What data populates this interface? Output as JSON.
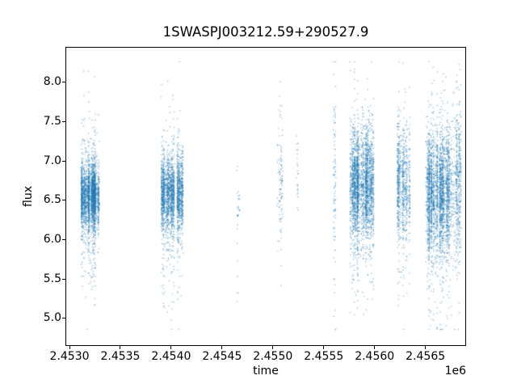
{
  "figure": {
    "background_color": "#ffffff",
    "text_color": "#000000"
  },
  "chart_data": {
    "type": "scatter",
    "title": "1SWASPJ003212.59+290527.9",
    "xlabel": "time",
    "ylabel": "flux",
    "x_offset_label": "1e6",
    "grid": false,
    "legend": null,
    "xlim": [
      2452960,
      2456900
    ],
    "ylim": [
      4.65,
      8.45
    ],
    "x_ticks": [
      2453000,
      2453500,
      2454000,
      2454500,
      2455000,
      2455500,
      2456000,
      2456500
    ],
    "x_tick_labels": [
      "2.4530",
      "2.4535",
      "2.4540",
      "2.4545",
      "2.4550",
      "2.4555",
      "2.4560",
      "2.4565"
    ],
    "y_ticks": [
      5.0,
      5.5,
      6.0,
      6.5,
      7.0,
      7.5,
      8.0
    ],
    "y_tick_labels": [
      "5.0",
      "5.5",
      "6.0",
      "6.5",
      "7.0",
      "7.5",
      "8.0"
    ],
    "marker_color": "#1f77b4",
    "marker_alpha": 0.5,
    "marker_size_px": 1.3,
    "flux_clamp": [
      4.86,
      8.26
    ],
    "clusters": [
      {
        "name": "season-1",
        "t_min": 2453111,
        "t_max": 2453294,
        "n": 2600,
        "flux_mean": 6.55,
        "flux_sigma": 0.2,
        "tail_frac": 0.18,
        "tail_sigma": 0.5,
        "tail_bias": -0.1,
        "night_spacing": 4
      },
      {
        "name": "season-2a",
        "t_min": 2453905,
        "t_max": 2454038,
        "n": 1500,
        "flux_mean": 6.6,
        "flux_sigma": 0.23,
        "tail_frac": 0.18,
        "tail_sigma": 0.55,
        "tail_bias": -0.12,
        "night_spacing": 4
      },
      {
        "name": "season-2b",
        "t_min": 2454059,
        "t_max": 2454117,
        "n": 750,
        "flux_mean": 6.6,
        "flux_sigma": 0.26,
        "tail_frac": 0.18,
        "tail_sigma": 0.55,
        "tail_bias": -0.12,
        "night_spacing": 4
      },
      {
        "name": "sparse-column-1",
        "t_min": 2454644,
        "t_max": 2454676,
        "n": 30,
        "flux_mean": 6.35,
        "flux_sigma": 0.15,
        "tail_frac": 0.35,
        "tail_sigma": 0.5,
        "tail_bias": -0.25,
        "night_spacing": 2
      },
      {
        "name": "sparse-column-2",
        "t_min": 2455041,
        "t_max": 2455097,
        "n": 110,
        "flux_mean": 6.75,
        "flux_sigma": 0.38,
        "tail_frac": 0.25,
        "tail_sigma": 0.75,
        "tail_bias": -0.05,
        "night_spacing": 3
      },
      {
        "name": "sparse-column-3",
        "t_min": 2455232,
        "t_max": 2455248,
        "n": 25,
        "flux_mean": 6.75,
        "flux_sigma": 0.28,
        "tail_frac": 0.15,
        "tail_sigma": 0.35,
        "tail_bias": 0.0,
        "night_spacing": 2
      },
      {
        "name": "sparse-column-4",
        "t_min": 2455597,
        "t_max": 2455621,
        "n": 95,
        "flux_mean": 6.8,
        "flux_sigma": 0.5,
        "tail_frac": 0.35,
        "tail_sigma": 1.0,
        "tail_bias": -0.3,
        "night_spacing": 2
      },
      {
        "name": "season-3-lead",
        "t_min": 2455756,
        "t_max": 2455782,
        "n": 130,
        "flux_mean": 6.7,
        "flux_sigma": 0.4,
        "tail_frac": 0.2,
        "tail_sigma": 0.7,
        "tail_bias": -0.15,
        "night_spacing": 3
      },
      {
        "name": "season-3",
        "t_min": 2455782,
        "t_max": 2455994,
        "n": 2500,
        "flux_mean": 6.7,
        "flux_sigma": 0.33,
        "tail_frac": 0.18,
        "tail_sigma": 0.65,
        "tail_bias": -0.15,
        "night_spacing": 4
      },
      {
        "name": "season-4",
        "t_min": 2456225,
        "t_max": 2456352,
        "n": 850,
        "flux_mean": 6.7,
        "flux_sigma": 0.35,
        "tail_frac": 0.18,
        "tail_sigma": 0.7,
        "tail_bias": -0.18,
        "night_spacing": 4
      },
      {
        "name": "season-5",
        "t_min": 2456503,
        "t_max": 2456757,
        "n": 2700,
        "flux_mean": 6.6,
        "flux_sigma": 0.38,
        "tail_frac": 0.18,
        "tail_sigma": 0.7,
        "tail_bias": -0.18,
        "night_spacing": 4
      },
      {
        "name": "season-5-trail",
        "t_min": 2456765,
        "t_max": 2456852,
        "n": 500,
        "flux_mean": 6.7,
        "flux_sigma": 0.45,
        "tail_frac": 0.25,
        "tail_sigma": 0.8,
        "tail_bias": -0.2,
        "night_spacing": 3
      }
    ]
  }
}
